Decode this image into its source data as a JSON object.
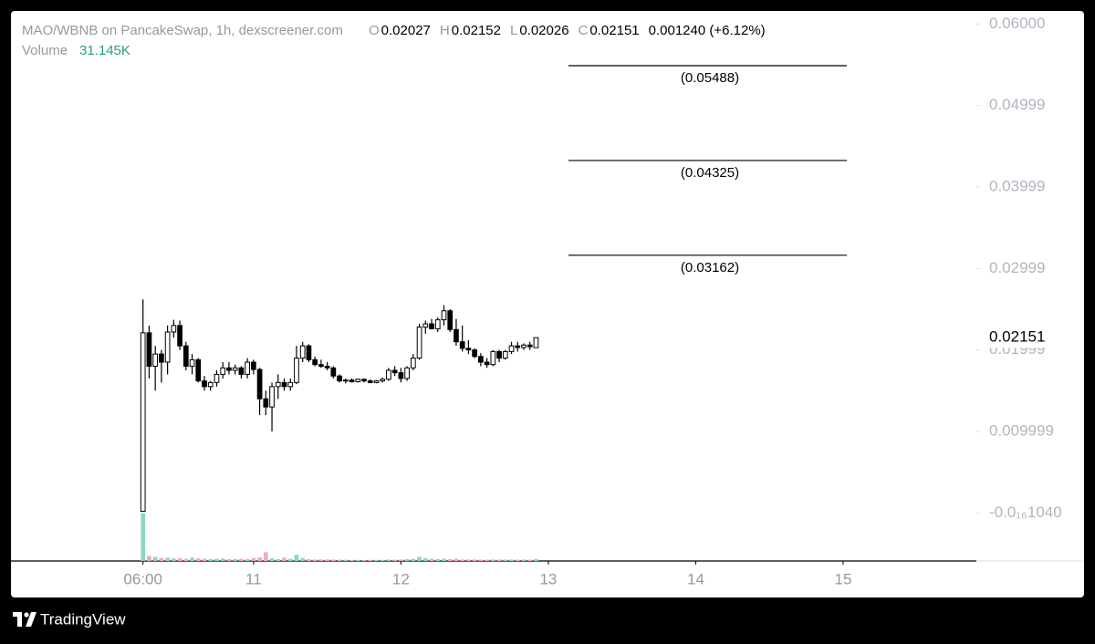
{
  "chart_data": {
    "type": "candlestick",
    "title": "MAO/WBNB on PancakeSwap, 1h, dexscreener.com",
    "ohlc_header": [
      {
        "key": "O",
        "value": 0.02027
      },
      {
        "key": "H",
        "value": 0.02152
      },
      {
        "key": "L",
        "value": 0.02026
      },
      {
        "key": "C",
        "value": 0.02151
      }
    ],
    "change": "0.001240 (+6.12%)",
    "volume_label": "Volume",
    "volume_value": "31.145K",
    "last_price": 0.02151,
    "x": [
      0,
      1,
      2,
      3,
      4,
      5,
      6,
      7,
      8,
      9,
      10,
      11,
      12,
      13,
      14,
      15,
      16,
      17,
      18,
      19,
      20,
      21,
      22,
      23,
      24,
      25,
      26,
      27,
      28,
      29,
      30,
      31,
      32,
      33,
      34,
      35,
      36,
      37,
      38,
      39,
      40,
      41,
      42,
      43,
      44,
      45,
      46,
      47,
      48,
      49,
      50,
      51,
      52,
      53,
      54,
      55,
      56,
      57,
      58,
      59,
      60,
      61,
      62,
      63,
      64
    ],
    "open": [
      0.0002,
      0.0221,
      0.018,
      0.0195,
      0.0185,
      0.0222,
      0.023,
      0.0205,
      0.018,
      0.0188,
      0.0162,
      0.0155,
      0.016,
      0.017,
      0.0178,
      0.0175,
      0.0178,
      0.017,
      0.0185,
      0.0176,
      0.014,
      0.013,
      0.0155,
      0.016,
      0.0155,
      0.016,
      0.019,
      0.0205,
      0.0188,
      0.0182,
      0.018,
      0.0178,
      0.0168,
      0.0162,
      0.0163,
      0.0161,
      0.0164,
      0.0162,
      0.016,
      0.0162,
      0.0164,
      0.0175,
      0.0172,
      0.0165,
      0.0178,
      0.019,
      0.0228,
      0.0232,
      0.0226,
      0.0237,
      0.0248,
      0.0225,
      0.021,
      0.0202,
      0.02,
      0.0192,
      0.0185,
      0.0182,
      0.0198,
      0.019,
      0.0198,
      0.0205,
      0.0203,
      0.0206,
      0.02027
    ],
    "high": [
      0.0262,
      0.023,
      0.0205,
      0.02,
      0.023,
      0.0237,
      0.0236,
      0.021,
      0.0195,
      0.019,
      0.0168,
      0.0162,
      0.0175,
      0.0185,
      0.0185,
      0.0182,
      0.018,
      0.019,
      0.0188,
      0.0178,
      0.015,
      0.016,
      0.017,
      0.0165,
      0.0165,
      0.0205,
      0.021,
      0.0207,
      0.0192,
      0.0188,
      0.0185,
      0.018,
      0.017,
      0.0165,
      0.0165,
      0.0165,
      0.0165,
      0.0164,
      0.0163,
      0.0166,
      0.0178,
      0.018,
      0.0178,
      0.018,
      0.0195,
      0.0232,
      0.0236,
      0.0238,
      0.024,
      0.0255,
      0.025,
      0.0238,
      0.023,
      0.0212,
      0.0202,
      0.0196,
      0.019,
      0.02,
      0.02,
      0.02,
      0.021,
      0.021,
      0.0208,
      0.021,
      0.02152
    ],
    "low": [
      0.0002,
      0.0165,
      0.015,
      0.016,
      0.017,
      0.0215,
      0.02,
      0.0175,
      0.017,
      0.016,
      0.015,
      0.015,
      0.0155,
      0.0165,
      0.017,
      0.017,
      0.0165,
      0.0165,
      0.017,
      0.012,
      0.012,
      0.01,
      0.014,
      0.015,
      0.015,
      0.0158,
      0.0185,
      0.0185,
      0.018,
      0.0178,
      0.0175,
      0.0165,
      0.016,
      0.0159,
      0.016,
      0.016,
      0.016,
      0.0159,
      0.0159,
      0.016,
      0.0162,
      0.0168,
      0.016,
      0.0162,
      0.0175,
      0.0188,
      0.022,
      0.0225,
      0.0222,
      0.023,
      0.0222,
      0.0205,
      0.0198,
      0.0195,
      0.019,
      0.018,
      0.0178,
      0.018,
      0.0185,
      0.0188,
      0.0195,
      0.0198,
      0.02,
      0.02,
      0.02026
    ],
    "close": [
      0.0221,
      0.018,
      0.0195,
      0.0185,
      0.0222,
      0.023,
      0.0205,
      0.018,
      0.0188,
      0.0162,
      0.0155,
      0.016,
      0.017,
      0.0178,
      0.0175,
      0.0178,
      0.017,
      0.0185,
      0.0176,
      0.014,
      0.013,
      0.0155,
      0.016,
      0.0155,
      0.016,
      0.019,
      0.0205,
      0.0188,
      0.0182,
      0.018,
      0.0178,
      0.0168,
      0.0162,
      0.0163,
      0.0161,
      0.0164,
      0.0162,
      0.016,
      0.0162,
      0.0164,
      0.0175,
      0.0172,
      0.0165,
      0.0178,
      0.019,
      0.0228,
      0.0232,
      0.0226,
      0.0237,
      0.0248,
      0.0225,
      0.021,
      0.0202,
      0.02,
      0.0192,
      0.0185,
      0.0182,
      0.0198,
      0.019,
      0.0198,
      0.0205,
      0.0203,
      0.0206,
      0.0204,
      0.02151
    ],
    "volume": [
      650,
      70,
      55,
      40,
      45,
      35,
      40,
      30,
      45,
      35,
      30,
      25,
      30,
      35,
      25,
      25,
      30,
      25,
      40,
      50,
      120,
      35,
      25,
      45,
      30,
      85,
      40,
      25,
      20,
      20,
      20,
      20,
      18,
      18,
      15,
      15,
      15,
      15,
      15,
      15,
      20,
      18,
      20,
      25,
      30,
      55,
      40,
      30,
      25,
      30,
      25,
      30,
      20,
      20,
      20,
      18,
      18,
      20,
      20,
      18,
      20,
      18,
      20,
      18,
      25
    ],
    "levels": [
      {
        "value": 0.05488,
        "label": "(0.05488)"
      },
      {
        "value": 0.04325,
        "label": "(0.04325)"
      },
      {
        "value": 0.03162,
        "label": "(0.03162)"
      }
    ],
    "xlim": [
      -21.5,
      135.7
    ],
    "xticks": [
      {
        "value": 0,
        "label": "06:00"
      },
      {
        "value": 18,
        "label": "11"
      },
      {
        "value": 42,
        "label": "12"
      },
      {
        "value": 66,
        "label": "13"
      },
      {
        "value": 90,
        "label": "14"
      },
      {
        "value": 114,
        "label": "15"
      }
    ],
    "ylim": [
      -0.0059,
      0.0616
    ],
    "yticks": [
      {
        "value": 0.06,
        "label": "0.06000"
      },
      0.04999,
      0.03999,
      0.02999,
      0.01999,
      0.009999,
      {
        "value": -1.04e-17,
        "label": "-0.0₁₆1040"
      }
    ],
    "up_color": "#ffffff",
    "down_color": "#000000",
    "volume_up_color": "#8fd6c2",
    "volume_down_color": "#f4aab6",
    "brand": "TradingView"
  }
}
